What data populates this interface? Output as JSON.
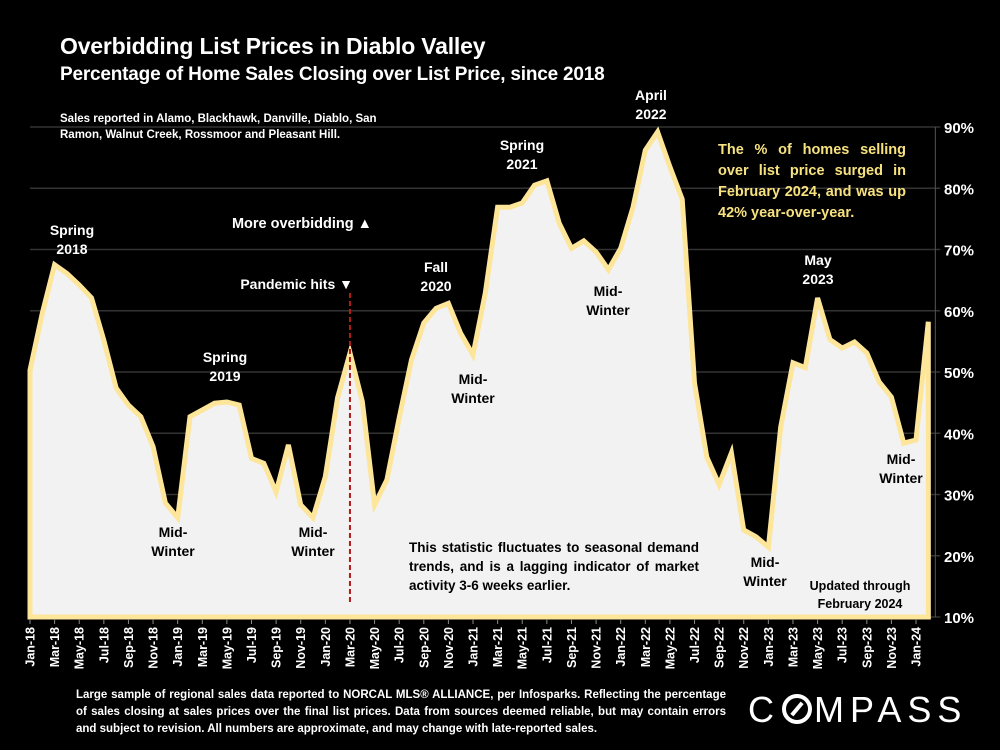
{
  "header": {
    "title": "Overbidding List Prices in Diablo Valley",
    "subtitle": "Percentage of Home Sales Closing over List Price, since 2018",
    "coverage": "Sales reported in Alamo, Blackhawk, Danville, Diablo, San Ramon, Walnut Creek, Rossmoor and Pleasant Hill."
  },
  "callout": "The % of homes selling over list price surged in February 2024, and was up 42% year-over-year.",
  "note": "This statistic fluctuates to seasonal demand trends, and is a lagging indicator of market activity 3-6 weeks earlier.",
  "updated": [
    "Updated through",
    "February 2024"
  ],
  "footer": "Large sample of regional sales data reported to NORCAL MLS® ALLIANCE, per Infosparks. Reflecting the percentage of sales closing at sales prices over the final list prices. Data from sources deemed reliable, but may contain errors and subject to revision. All numbers are approximate, and may change with late-reported sales.",
  "logo": {
    "pre": "C",
    "post": "MPASS",
    "icon": "compass-o-icon"
  },
  "colors": {
    "line": "#fde59a",
    "fill": "#f2f2f2",
    "background": "#000000",
    "pandemic_marker": "#b31b1b",
    "callout_text": "#f7e27f",
    "grid": "#333333"
  },
  "chart_data": {
    "type": "area",
    "title": "Overbidding List Prices in Diablo Valley",
    "subtitle": "Percentage of Home Sales Closing over List Price, since 2018",
    "xlabel": "",
    "ylabel": "",
    "ylim": [
      10,
      90
    ],
    "yticks": [
      "10%",
      "20%",
      "30%",
      "40%",
      "50%",
      "60%",
      "70%",
      "80%",
      "90%"
    ],
    "y_axis_side": "right",
    "grid": true,
    "xtick_labels": [
      "Jan-18",
      "Mar-18",
      "May-18",
      "Jul-18",
      "Sep-18",
      "Nov-18",
      "Jan-19",
      "Mar-19",
      "May-19",
      "Jul-19",
      "Sep-19",
      "Nov-19",
      "Jan-20",
      "Mar-20",
      "May-20",
      "Jul-20",
      "Sep-20",
      "Nov-20",
      "Jan-21",
      "Mar-21",
      "May-21",
      "Jul-21",
      "Sep-21",
      "Nov-21",
      "Jan-22",
      "Mar-22",
      "May-22",
      "Jul-22",
      "Sep-22",
      "Nov-22",
      "Jan-23",
      "Mar-23",
      "May-23",
      "Jul-23",
      "Sep-23",
      "Nov-23",
      "Jan-24"
    ],
    "x": [
      "Jan-18",
      "Feb-18",
      "Mar-18",
      "Apr-18",
      "May-18",
      "Jun-18",
      "Jul-18",
      "Aug-18",
      "Sep-18",
      "Oct-18",
      "Nov-18",
      "Dec-18",
      "Jan-19",
      "Feb-19",
      "Mar-19",
      "Apr-19",
      "May-19",
      "Jun-19",
      "Jul-19",
      "Aug-19",
      "Sep-19",
      "Oct-19",
      "Nov-19",
      "Dec-19",
      "Jan-20",
      "Feb-20",
      "Mar-20",
      "Apr-20",
      "May-20",
      "Jun-20",
      "Jul-20",
      "Aug-20",
      "Sep-20",
      "Oct-20",
      "Nov-20",
      "Dec-20",
      "Jan-21",
      "Feb-21",
      "Mar-21",
      "Apr-21",
      "May-21",
      "Jun-21",
      "Jul-21",
      "Aug-21",
      "Sep-21",
      "Oct-21",
      "Nov-21",
      "Dec-21",
      "Jan-22",
      "Feb-22",
      "Mar-22",
      "Apr-22",
      "May-22",
      "Jun-22",
      "Jul-22",
      "Aug-22",
      "Sep-22",
      "Oct-22",
      "Nov-22",
      "Dec-22",
      "Jan-23",
      "Feb-23",
      "Mar-23",
      "Apr-23",
      "May-23",
      "Jun-23",
      "Jul-23",
      "Aug-23",
      "Sep-23",
      "Oct-23",
      "Nov-23",
      "Dec-23",
      "Jan-24",
      "Feb-24"
    ],
    "series": [
      {
        "name": "% of sales over list price",
        "values": [
          50.3,
          59.6,
          67.5,
          66.1,
          64.2,
          62.1,
          55.2,
          47.4,
          44.6,
          42.7,
          37.8,
          28.6,
          26.2,
          42.7,
          43.8,
          44.9,
          45.1,
          44.6,
          35.9,
          35.1,
          30.4,
          38.1,
          28.3,
          26.2,
          32.9,
          45.8,
          53.1,
          45.2,
          28.3,
          32.4,
          42.5,
          52.0,
          58.0,
          60.4,
          61.2,
          56.3,
          52.8,
          62.9,
          76.9,
          76.9,
          77.6,
          80.5,
          81.2,
          74.3,
          70.2,
          71.4,
          69.6,
          66.7,
          70.2,
          76.9,
          86.2,
          89.2,
          83.5,
          78.2,
          48.2,
          36.1,
          31.6,
          36.8,
          24.2,
          23.1,
          21.4,
          41.0,
          51.5,
          50.7,
          62.1,
          55.3,
          53.9,
          54.9,
          53.1,
          48.4,
          45.9,
          38.4,
          38.9,
          58.2
        ]
      }
    ],
    "annotations": [
      {
        "text": [
          "Spring",
          "2018"
        ],
        "at": "Mar-18",
        "position": "above"
      },
      {
        "text": [
          "Mid-",
          "Winter"
        ],
        "at": "Jan-19",
        "position": "below"
      },
      {
        "text": [
          "Spring",
          "2019"
        ],
        "at": "May-19",
        "position": "above"
      },
      {
        "text": [
          "Mid-",
          "Winter"
        ],
        "at": "Dec-19",
        "position": "below"
      },
      {
        "text": [
          "Pandemic hits ▼"
        ],
        "at": "Mar-20",
        "position": "above",
        "marker": "dashed-vertical-line"
      },
      {
        "text": [
          "More overbidding ▲"
        ],
        "position": "upper-left-center"
      },
      {
        "text": [
          "Fall",
          "2020"
        ],
        "at": "Nov-20",
        "position": "above"
      },
      {
        "text": [
          "Mid-",
          "Winter"
        ],
        "at": "Jan-21",
        "position": "below"
      },
      {
        "text": [
          "Spring",
          "2021"
        ],
        "at": "Jun-21",
        "position": "above"
      },
      {
        "text": [
          "Mid-",
          "Winter"
        ],
        "at": "Dec-21",
        "position": "below"
      },
      {
        "text": [
          "April",
          "2022"
        ],
        "at": "Apr-22",
        "position": "above"
      },
      {
        "text": [
          "Mid-",
          "Winter"
        ],
        "at": "Jan-23",
        "position": "below"
      },
      {
        "text": [
          "May",
          "2023"
        ],
        "at": "May-23",
        "position": "above"
      },
      {
        "text": [
          "Mid-",
          "Winter"
        ],
        "at": "Dec-23",
        "position": "below"
      }
    ]
  }
}
